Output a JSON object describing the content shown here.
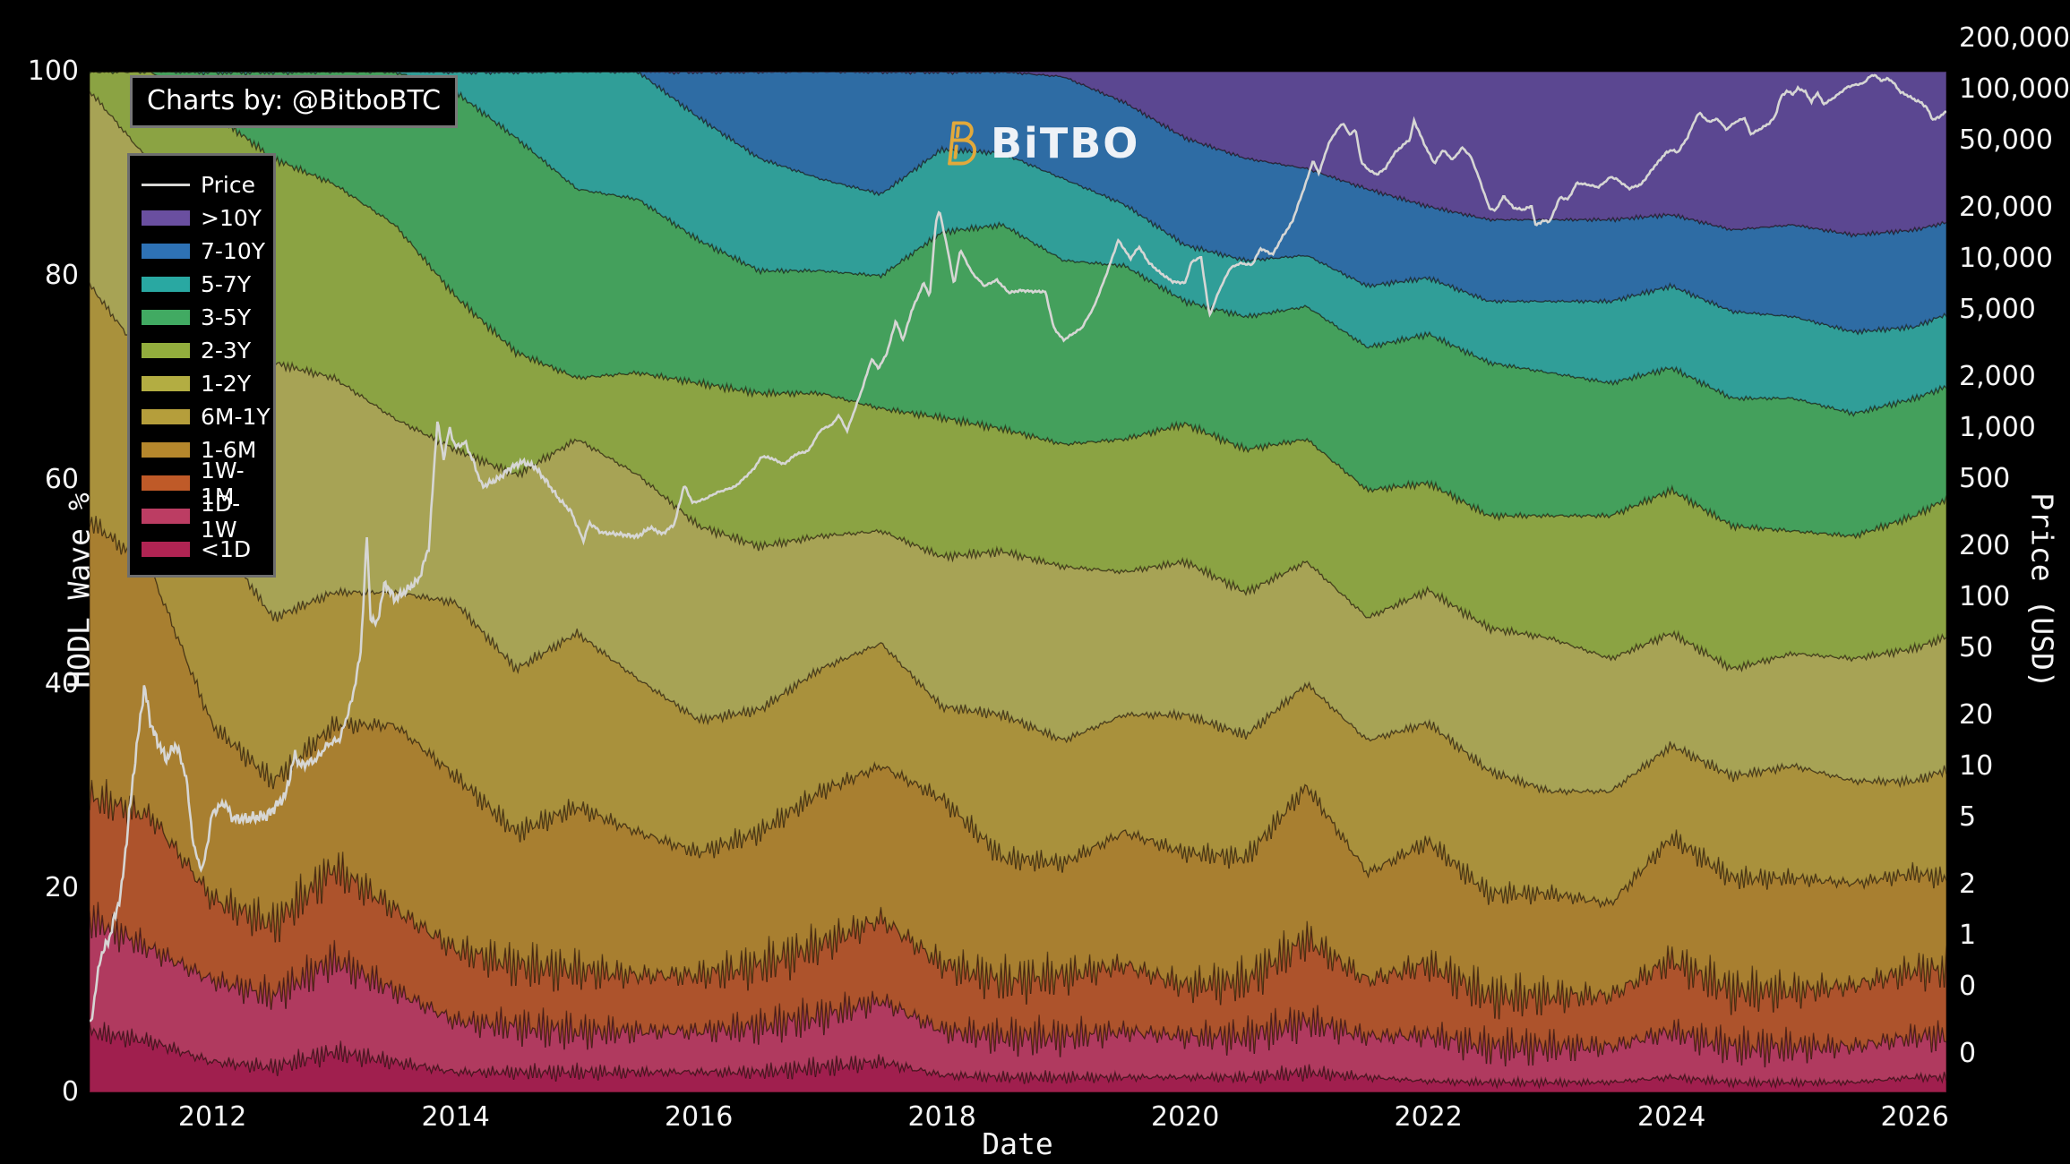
{
  "branding": {
    "credit": "Charts by: @BitboBTC",
    "logo_text": "BiTBO",
    "logo_icon": "bitcoin-b-icon",
    "logo_icon_color": "#e2a93b",
    "logo_text_color": "#eef2f7"
  },
  "axes": {
    "x": {
      "label": "Date",
      "ticks": [
        2012,
        2014,
        2016,
        2018,
        2020,
        2022,
        2024,
        2026
      ],
      "range": [
        2010.99,
        2026.26
      ]
    },
    "y_left": {
      "label": "HODL Wave %",
      "ticks": [
        0,
        20,
        40,
        60,
        80,
        100
      ],
      "range": [
        0,
        100
      ]
    },
    "y_right": {
      "label": "Price (USD)",
      "scale": "log",
      "tick_labels": [
        "200,000",
        "100,000",
        "50,000",
        "20,000",
        "10,000",
        "5,000",
        "2,000",
        "1,000",
        "500",
        "200",
        "100",
        "50",
        "20",
        "10",
        "5",
        "2",
        "1",
        "0",
        "0"
      ],
      "tick_values": [
        200000,
        100000,
        50000,
        20000,
        10000,
        5000,
        2000,
        1000,
        500,
        200,
        100,
        50,
        20,
        10,
        5,
        2,
        1,
        0.5,
        0.2
      ],
      "range": [
        0.118,
        127700
      ]
    }
  },
  "legend": {
    "items": [
      {
        "label": "Price",
        "type": "line",
        "color": "#d6d6d4"
      },
      {
        "label": ">10Y",
        "type": "swatch",
        "color": "#6a4fa0"
      },
      {
        "label": "7-10Y",
        "type": "swatch",
        "color": "#2e72b5"
      },
      {
        "label": "5-7Y",
        "type": "swatch",
        "color": "#29a8a2"
      },
      {
        "label": "3-5Y",
        "type": "swatch",
        "color": "#41aa62"
      },
      {
        "label": "2-3Y",
        "type": "swatch",
        "color": "#92ad3d"
      },
      {
        "label": "1-2Y",
        "type": "swatch",
        "color": "#b3ad42"
      },
      {
        "label": "6M-1Y",
        "type": "swatch",
        "color": "#b59e3b"
      },
      {
        "label": "1-6M",
        "type": "swatch",
        "color": "#b5872c"
      },
      {
        "label": "1W-1M",
        "type": "swatch",
        "color": "#bf5a28"
      },
      {
        "label": "1D-1W",
        "type": "swatch",
        "color": "#bc3d63"
      },
      {
        "label": "<1D",
        "type": "swatch",
        "color": "#b02453"
      }
    ]
  },
  "chart_data": {
    "type": "area",
    "stacked_percent": true,
    "title": "",
    "xlabel": "Date",
    "ylabel_left": "HODL Wave %",
    "ylabel_right": "Price (USD)",
    "grid": false,
    "legend_position": "upper-left",
    "x": [
      2011,
      2011.5,
      2012,
      2012.5,
      2013,
      2013.5,
      2014,
      2014.5,
      2015,
      2015.5,
      2016,
      2016.5,
      2017,
      2017.5,
      2018,
      2018.5,
      2019,
      2019.5,
      2020,
      2020.5,
      2021,
      2021.5,
      2022,
      2022.5,
      2023,
      2023.5,
      2024,
      2024.5,
      2025,
      2025.5,
      2026,
      2026.25
    ],
    "series": [
      {
        "name": "<1D",
        "fill": "#a01f4e",
        "jitter": 1.2,
        "values": [
          6,
          5,
          3,
          2.5,
          4,
          3,
          2,
          2,
          2,
          2,
          2,
          2,
          2.5,
          3,
          1.7,
          1.5,
          1.5,
          1.5,
          1.5,
          1.5,
          2,
          1.5,
          1.1,
          1,
          1,
          1,
          1.5,
          1,
          1,
          1,
          1.5,
          1.5
        ]
      },
      {
        "name": "1D-1W",
        "fill": "#b03a5f",
        "jitter": 2.2,
        "values": [
          11,
          9,
          8,
          7,
          9,
          7,
          5,
          4.5,
          4,
          4,
          4,
          4.5,
          5,
          6,
          4.4,
          4,
          4,
          4.5,
          4,
          4,
          5,
          4,
          4.5,
          3.5,
          3.5,
          3.5,
          4.5,
          3.5,
          3.5,
          3.5,
          4,
          4
        ]
      },
      {
        "name": "1W-1M",
        "fill": "#ad532c",
        "jitter": 2.6,
        "values": [
          12,
          13,
          8,
          7,
          9,
          8,
          7,
          6,
          6,
          5.5,
          5.5,
          6,
          7,
          8,
          6.5,
          5.5,
          6,
          6.5,
          5,
          5.5,
          8,
          5.5,
          7,
          5,
          5,
          5,
          7,
          5.5,
          5.5,
          6,
          6.5,
          6.5
        ]
      },
      {
        "name": "1-6M",
        "fill": "#a87f30",
        "jitter": 1.3,
        "values": [
          27,
          24,
          17,
          14,
          14,
          18,
          17,
          13,
          16,
          14,
          12,
          13,
          15,
          15,
          16.2,
          12,
          11,
          13,
          13,
          12,
          15,
          10.5,
          12,
          10,
          10,
          9,
          12,
          11,
          11,
          10,
          9.5,
          9
        ]
      },
      {
        "name": "6M-1Y",
        "fill": "#a9913c",
        "jitter": 0.6,
        "values": [
          23,
          20,
          19,
          16,
          13,
          13,
          17,
          16,
          17,
          15,
          13,
          12,
          12,
          12,
          9,
          14,
          12,
          11.5,
          13.5,
          12,
          10,
          13,
          11.6,
          12,
          10,
          11,
          9,
          10,
          11,
          10,
          9,
          10.6
        ]
      },
      {
        "name": "1-2Y",
        "fill": "#a7a355",
        "jitter": 0.5,
        "values": [
          19,
          20,
          24,
          25,
          21,
          17,
          15,
          19,
          19,
          20,
          19,
          16,
          13,
          11,
          14.7,
          16,
          17,
          14,
          15,
          14,
          12,
          12,
          13,
          14,
          15,
          13,
          11,
          10.5,
          11,
          12,
          13,
          13
        ]
      },
      {
        "name": "2-3Y",
        "fill": "#8ba343",
        "jitter": 0.45,
        "values": [
          2,
          9,
          17,
          20,
          19,
          19,
          15,
          12,
          6,
          10,
          14,
          15,
          14,
          12,
          13.6,
          12,
          12,
          13,
          13.5,
          14,
          12,
          12.5,
          10.5,
          11,
          12,
          14,
          14,
          14,
          12,
          12,
          13,
          13.5
        ]
      },
      {
        "name": "3-5Y",
        "fill": "#44a05c",
        "jitter": 0.35,
        "values": [
          0,
          0,
          4,
          8.5,
          11,
          15,
          20,
          21,
          18.5,
          17,
          14,
          12,
          12,
          13,
          18.2,
          20,
          18,
          17,
          12,
          13,
          13,
          14,
          14.6,
          15,
          14,
          13,
          12,
          12.5,
          13,
          12,
          11.5,
          11
        ]
      },
      {
        "name": "5-7Y",
        "fill": "#309e98",
        "jitter": 0.3,
        "values": [
          0,
          0,
          0,
          0,
          0,
          0,
          2,
          6.5,
          11.5,
          12.5,
          12,
          11,
          9,
          8,
          8.1,
          7,
          8,
          6,
          5.5,
          5.5,
          5,
          6,
          5.5,
          6,
          7,
          8,
          8,
          8.5,
          8,
          8,
          7,
          7.1
        ]
      },
      {
        "name": "7-10Y",
        "fill": "#2e6ca4",
        "jitter": 0.25,
        "values": [
          0,
          0,
          0,
          0,
          0,
          0,
          0,
          0,
          0,
          0,
          4.5,
          8.5,
          10.5,
          12,
          7.6,
          8,
          10,
          10,
          10.5,
          10,
          8.5,
          9.5,
          7,
          8,
          8,
          8,
          7,
          8,
          9,
          9.5,
          9.5,
          9
        ]
      },
      {
        "name": ">10Y",
        "fill": "#5b4791",
        "jitter": 0,
        "values": [
          0,
          0,
          0,
          0,
          0,
          0,
          0,
          0,
          0,
          0,
          0,
          0,
          0,
          0,
          0,
          0,
          0.5,
          3,
          6.5,
          8.5,
          9.5,
          11.5,
          13.2,
          14.5,
          14.5,
          14.5,
          14,
          15.5,
          15,
          16,
          15.5,
          14.8
        ]
      }
    ],
    "price_series": {
      "name": "Price",
      "color": "#d6d6d4",
      "scale": "log",
      "x": [
        2011.0,
        2011.08,
        2011.15,
        2011.25,
        2011.35,
        2011.44,
        2011.5,
        2011.55,
        2011.62,
        2011.7,
        2011.78,
        2011.85,
        2011.92,
        2012.0,
        2012.1,
        2012.17,
        2012.3,
        2012.45,
        2012.6,
        2012.68,
        2012.72,
        2012.85,
        2012.95,
        2013.05,
        2013.15,
        2013.22,
        2013.27,
        2013.3,
        2013.35,
        2013.42,
        2013.5,
        2013.6,
        2013.7,
        2013.78,
        2013.85,
        2013.9,
        2013.95,
        2014.0,
        2014.08,
        2014.15,
        2014.22,
        2014.35,
        2014.45,
        2014.55,
        2014.65,
        2014.75,
        2014.85,
        2014.95,
        2015.05,
        2015.1,
        2015.2,
        2015.35,
        2015.5,
        2015.6,
        2015.7,
        2015.8,
        2015.88,
        2015.95,
        2016.05,
        2016.15,
        2016.3,
        2016.45,
        2016.52,
        2016.6,
        2016.7,
        2016.8,
        2016.9,
        2017.0,
        2017.1,
        2017.15,
        2017.22,
        2017.35,
        2017.42,
        2017.48,
        2017.55,
        2017.62,
        2017.68,
        2017.75,
        2017.85,
        2017.9,
        2017.95,
        2017.98,
        2018.05,
        2018.1,
        2018.15,
        2018.25,
        2018.35,
        2018.45,
        2018.55,
        2018.65,
        2018.75,
        2018.85,
        2018.92,
        2019.0,
        2019.05,
        2019.15,
        2019.25,
        2019.35,
        2019.45,
        2019.55,
        2019.62,
        2019.7,
        2019.8,
        2019.9,
        2020.0,
        2020.05,
        2020.13,
        2020.2,
        2020.28,
        2020.37,
        2020.45,
        2020.55,
        2020.62,
        2020.72,
        2020.8,
        2020.88,
        2020.95,
        2021.0,
        2021.05,
        2021.1,
        2021.18,
        2021.25,
        2021.3,
        2021.35,
        2021.4,
        2021.45,
        2021.52,
        2021.58,
        2021.65,
        2021.72,
        2021.8,
        2021.85,
        2021.88,
        2021.92,
        2021.97,
        2022.05,
        2022.12,
        2022.2,
        2022.28,
        2022.35,
        2022.42,
        2022.5,
        2022.55,
        2022.62,
        2022.7,
        2022.78,
        2022.85,
        2022.88,
        2022.95,
        2023.0,
        2023.08,
        2023.15,
        2023.22,
        2023.3,
        2023.4,
        2023.5,
        2023.55,
        2023.65,
        2023.75,
        2023.85,
        2023.95,
        2024.0,
        2024.05,
        2024.13,
        2024.2,
        2024.23,
        2024.3,
        2024.38,
        2024.45,
        2024.52,
        2024.6,
        2024.65,
        2024.72,
        2024.8,
        2024.85,
        2024.9,
        2024.95,
        2025.0,
        2025.04,
        2025.1,
        2025.15,
        2025.2,
        2025.25,
        2025.32,
        2025.4,
        2025.45,
        2025.52,
        2025.58,
        2025.62,
        2025.67,
        2025.72,
        2025.78,
        2025.82,
        2025.88,
        2025.95,
        2026.0,
        2026.05,
        2026.1,
        2026.15,
        2026.2,
        2026.26
      ],
      "values": [
        0.3,
        0.75,
        0.95,
        1.8,
        8.9,
        29.6,
        17,
        14,
        11,
        13.5,
        9,
        3.2,
        2.4,
        5.3,
        6.1,
        4.9,
        4.9,
        5.1,
        6.7,
        11.8,
        10.1,
        10.9,
        13.5,
        14.5,
        25,
        47,
        230,
        77,
        68,
        122,
        97,
        110,
        128,
        198,
        1120,
        650,
        995,
        770,
        820,
        620,
        450,
        500,
        580,
        630,
        590,
        480,
        380,
        320,
        215,
        275,
        240,
        235,
        228,
        258,
        236,
        270,
        460,
        360,
        380,
        415,
        450,
        570,
        680,
        660,
        610,
        700,
        730,
        970,
        1050,
        1190,
        960,
        1750,
        2550,
        2250,
        2800,
        4300,
        3300,
        4900,
        7200,
        6000,
        16700,
        19200,
        11000,
        7000,
        11300,
        8200,
        6900,
        7500,
        6300,
        6500,
        6400,
        6400,
        3900,
        3300,
        3500,
        3900,
        5200,
        8000,
        12900,
        10000,
        11800,
        9500,
        8200,
        7300,
        7200,
        9500,
        10300,
        4600,
        6500,
        8800,
        9400,
        9200,
        11500,
        10600,
        13500,
        16500,
        23000,
        29000,
        38000,
        32000,
        48000,
        58000,
        63500,
        54000,
        58000,
        37000,
        33000,
        31500,
        34500,
        42000,
        47500,
        51000,
        66000,
        57000,
        47000,
        36500,
        44000,
        38500,
        45500,
        40000,
        29500,
        20000,
        19200,
        23500,
        20000,
        19500,
        20500,
        15800,
        16800,
        16600,
        23000,
        22500,
        28000,
        27500,
        26500,
        30500,
        29500,
        26000,
        27500,
        34500,
        42000,
        44000,
        42500,
        52000,
        68000,
        73000,
        64500,
        67000,
        58000,
        64000,
        68000,
        54500,
        58000,
        63000,
        69000,
        91000,
        98000,
        94000,
        102000,
        97000,
        84500,
        96000,
        82000,
        88000,
        97500,
        104000,
        107000,
        109000,
        118000,
        122500,
        113000,
        116000,
        111000,
        97000,
        91500,
        87000,
        84000,
        78000,
        66000,
        69000,
        74000
      ]
    }
  }
}
